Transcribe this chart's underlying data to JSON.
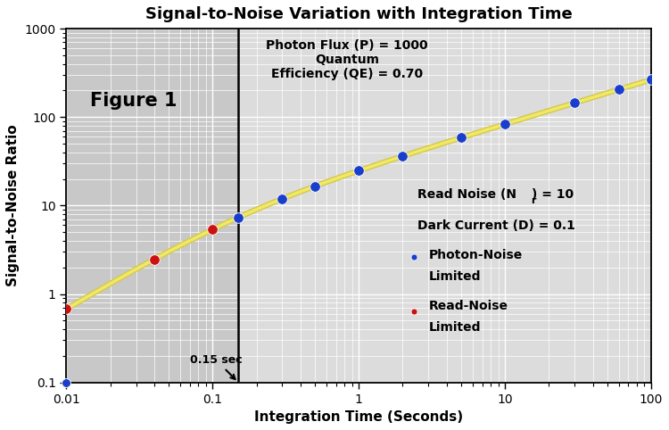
{
  "title": "Signal-to-Noise Variation with Integration Time",
  "xlabel": "Integration Time (Seconds)",
  "ylabel": "Signal-to-Noise Ratio",
  "xlim": [
    0.01,
    100
  ],
  "ylim": [
    0.1,
    1000
  ],
  "P": 1000,
  "QE": 0.7,
  "Nr": 10,
  "D": 0.1,
  "transition_time": 0.15,
  "bg_left_color": "#c8c8c8",
  "bg_right_color": "#dcdcdc",
  "line_color_outer": "#d4c84a",
  "line_color_inner": "#f0e868",
  "blue_dot_color": "#1a3ecc",
  "red_dot_color": "#cc1111",
  "t_red": [
    0.01,
    0.04,
    0.1
  ],
  "t_blue": [
    0.15,
    0.3,
    0.5,
    1.0,
    2.0,
    5.0,
    10.0,
    30.0,
    60.0,
    100.0
  ],
  "figure1_text": "Figure 1",
  "flux_annotation": "Photon Flux (P) = 1000\nQuantum\nEfficiency (QE) = 0.70",
  "noise_annotation_line1": "Read Noise (N",
  "noise_annotation_sub": "r",
  "noise_annotation_line1_end": ") = 10",
  "noise_annotation_line2": "Dark Current (D) = 0.1",
  "legend_blue_line1": "Photon-Noise",
  "legend_blue_line2": "Limited",
  "legend_red_line1": "Read-Noise",
  "legend_red_line2": "Limited",
  "arrow_label": "0.15 sec",
  "title_fontsize": 13,
  "axis_label_fontsize": 11,
  "tick_label_fontsize": 10,
  "annot_fontsize": 10,
  "legend_fontsize": 10,
  "figure1_fontsize": 15
}
